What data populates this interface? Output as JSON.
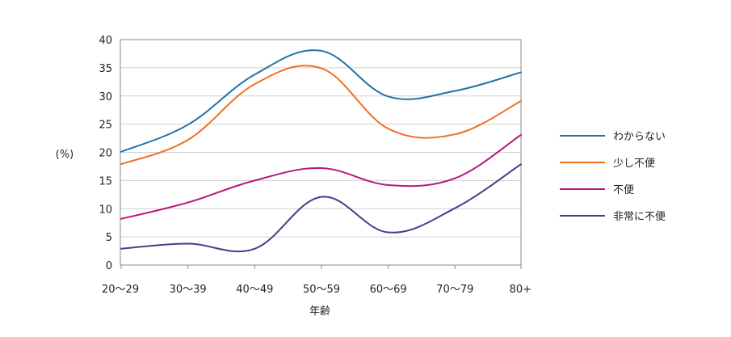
{
  "chart_data": {
    "type": "line",
    "categories": [
      "20〜29",
      "30〜39",
      "40〜49",
      "50〜59",
      "60〜69",
      "70〜79",
      "80+"
    ],
    "ylabel": "(%)",
    "xlabel": "年齢",
    "ylim": [
      0,
      40
    ],
    "yticks": [
      0,
      5,
      10,
      15,
      20,
      25,
      30,
      35,
      40
    ],
    "grid": "horizontal",
    "legend_position": "right",
    "series": [
      {
        "name": "わからない",
        "color": "#2272a6",
        "values": [
          20.1,
          24.9,
          33.8,
          38.0,
          29.9,
          30.9,
          34.2
        ]
      },
      {
        "name": "少し不便",
        "color": "#f26f21",
        "values": [
          17.9,
          22.2,
          32.1,
          34.9,
          24.2,
          23.2,
          29.1
        ]
      },
      {
        "name": "不便",
        "color": "#b5177e",
        "values": [
          8.2,
          11.1,
          15.0,
          17.2,
          14.2,
          15.4,
          23.1
        ]
      },
      {
        "name": "非常に不便",
        "color": "#4b3a8e",
        "values": [
          2.9,
          3.8,
          2.9,
          12.1,
          5.8,
          10.1,
          17.9
        ]
      }
    ]
  }
}
